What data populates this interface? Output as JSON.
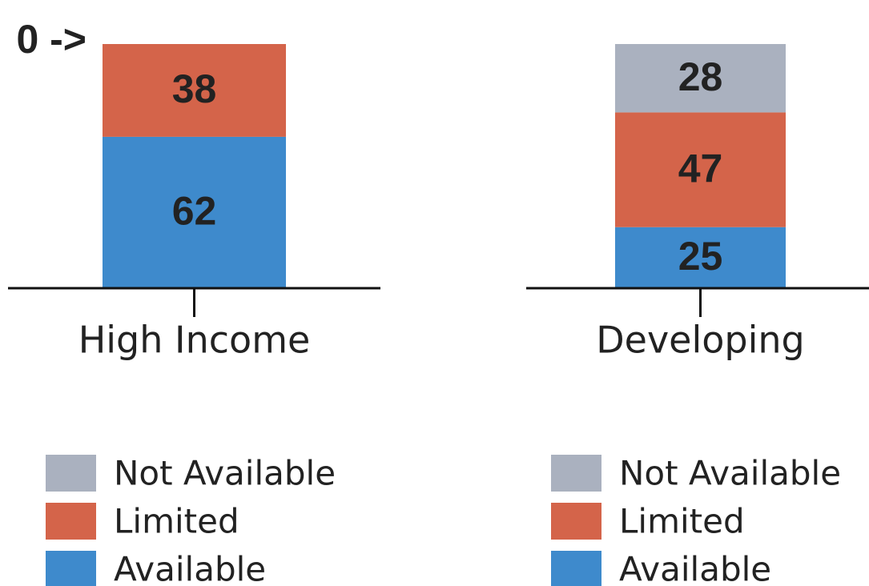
{
  "chart_data": [
    {
      "type": "bar",
      "categories": [
        "High Income"
      ],
      "ylim": [
        0,
        100
      ],
      "series": [
        {
          "name": "Available",
          "color": "#3e8acc",
          "values": [
            62
          ]
        },
        {
          "name": "Limited",
          "color": "#d4644a",
          "values": [
            38
          ]
        },
        {
          "name": "Not Available",
          "color": "#aab1bf",
          "values": [
            0
          ],
          "value_labels": [
            "0 ->"
          ]
        }
      ]
    },
    {
      "type": "bar",
      "categories": [
        "Developing"
      ],
      "ylim": [
        0,
        100
      ],
      "series": [
        {
          "name": "Available",
          "color": "#3e8acc",
          "values": [
            25
          ]
        },
        {
          "name": "Limited",
          "color": "#d4644a",
          "values": [
            47
          ]
        },
        {
          "name": "Not Available",
          "color": "#aab1bf",
          "values": [
            28
          ]
        }
      ]
    }
  ]
}
